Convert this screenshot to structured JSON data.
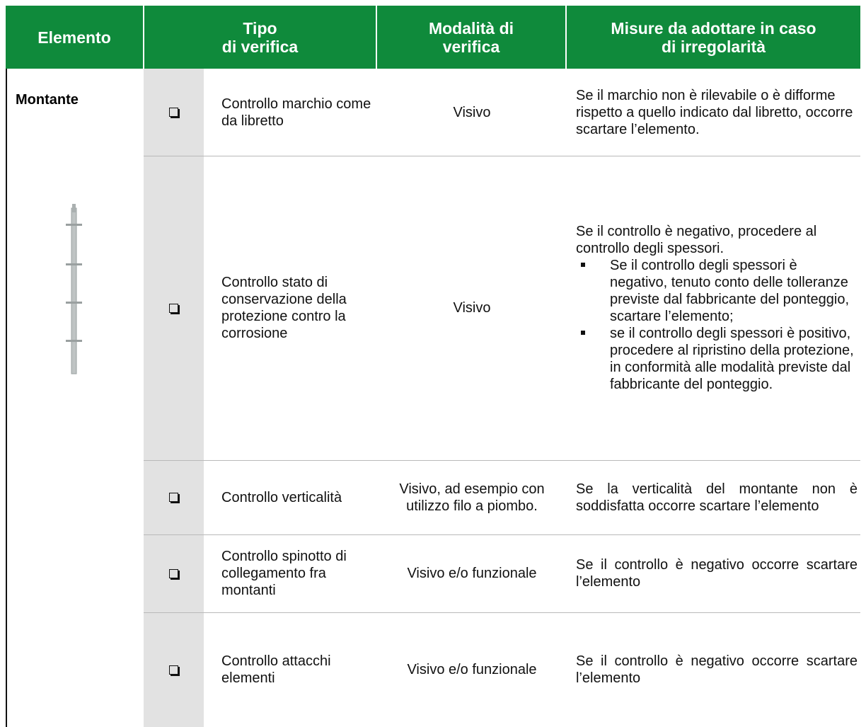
{
  "header": {
    "columns": [
      "Elemento",
      "Tipo\ndi verifica",
      "Modalità di\nverifica",
      "Misure da adottare in caso\ndi irregolarità"
    ]
  },
  "element": "Montante",
  "rows": [
    {
      "tipo": "Controllo marchio come da libretto",
      "modalita": "Visivo",
      "misure": "Se il marchio non è rilevabile o è difforme rispetto a quello indicato dal libretto, occorre scartare l’elemento."
    },
    {
      "tipo": "Controllo stato di conservazione della protezione contro la corrosione",
      "modalita": "Visivo",
      "misure": "Se il controllo è negativo, procedere al controllo degli spessori.",
      "misure_list": [
        "Se il controllo degli spessori è negativo, tenuto conto delle tolleranze previste dal fabbricante del ponteggio, scartare l’elemento;",
        "se il controllo degli spessori è positivo, procedere al ripristino della protezione, in conformità alle modalità previste dal fabbricante del ponteggio."
      ]
    },
    {
      "tipo": "Controllo verticalità",
      "modalita": "Visivo, ad esempio con utilizzo filo a piombo.",
      "misure": "Se la verticalità del montante non è soddisfatta occorre scartare l’elemento"
    },
    {
      "tipo": "Controllo spinotto di collegamento fra montanti",
      "modalita": "Visivo e/o funzionale",
      "misure": "Se il controllo è negativo occorre scartare l’elemento"
    },
    {
      "tipo": "Controllo attacchi elementi",
      "modalita": "Visivo e/o funzionale",
      "misure": "Se il controllo è negativo occorre scartare l’elemento"
    }
  ]
}
